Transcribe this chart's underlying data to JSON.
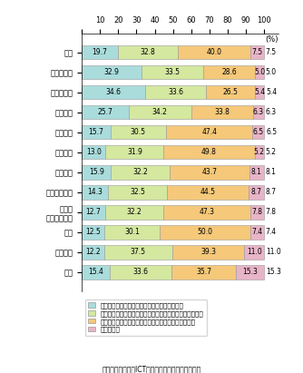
{
  "categories": [
    "全体",
    "経理・会計",
    "給与・人事",
    "情報共有",
    "顧客管理",
    "在庫管理",
    "営業支援",
    "調達・仕入れ",
    "生産・\nサービス提供",
    "物流",
    "商品開発",
    "研修"
  ],
  "series": [
    [
      19.7,
      32.9,
      34.6,
      25.7,
      15.7,
      13.0,
      15.9,
      14.3,
      12.7,
      12.5,
      12.2,
      15.4
    ],
    [
      32.8,
      33.5,
      33.6,
      34.2,
      30.5,
      31.9,
      32.2,
      32.5,
      32.2,
      30.1,
      37.5,
      33.6
    ],
    [
      40.0,
      28.6,
      26.5,
      33.8,
      47.4,
      49.8,
      43.7,
      44.5,
      47.3,
      50.0,
      39.3,
      35.7
    ],
    [
      7.5,
      5.0,
      5.4,
      6.3,
      6.5,
      5.2,
      8.1,
      8.7,
      7.8,
      7.4,
      11.0,
      15.3
    ]
  ],
  "colors": [
    "#aadcdc",
    "#d4e8a0",
    "#f5c87a",
    "#e8b4c8"
  ],
  "legend_labels": [
    "パッケージソフトを利用し、カスタマイズなし",
    "パッケージソフトを利用し、カスタマイズも積極的に実施",
    "パッケージソフトを利用せず、オーダーメイドで構築",
    "わからない"
  ],
  "source": "（出典）「企業のICTネットワーク利用状況調査」",
  "xticks": [
    0,
    10,
    20,
    30,
    40,
    50,
    60,
    70,
    80,
    90,
    100
  ]
}
